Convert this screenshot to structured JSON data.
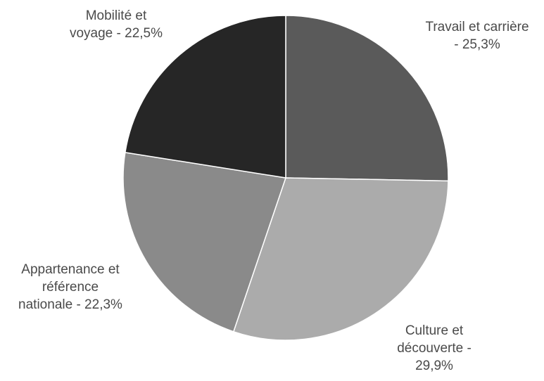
{
  "chart_data": {
    "type": "pie",
    "title": "",
    "slices": [
      {
        "label": "Travail et carrière - 25,3%",
        "lines": [
          "Travail et carrière",
          "- 25,3%"
        ],
        "value": 25.3,
        "color": "#5a5a5a"
      },
      {
        "label": "Culture et découverte - 29,9%",
        "lines": [
          "Culture et",
          "découverte -",
          "29,9%"
        ],
        "value": 29.9,
        "color": "#ababab"
      },
      {
        "label": "Appartenance et référence nationale - 22,3%",
        "lines": [
          "Appartenance et",
          "référence",
          "nationale - 22,3%"
        ],
        "value": 22.3,
        "color": "#8a8a8a"
      },
      {
        "label": "Mobilité et voyage - 22,5%",
        "lines": [
          "Mobilité et",
          "voyage - 22,5%"
        ],
        "value": 22.5,
        "color": "#262626"
      }
    ],
    "start_angle": "12 o'clock",
    "direction": "clockwise",
    "legend": "none"
  }
}
